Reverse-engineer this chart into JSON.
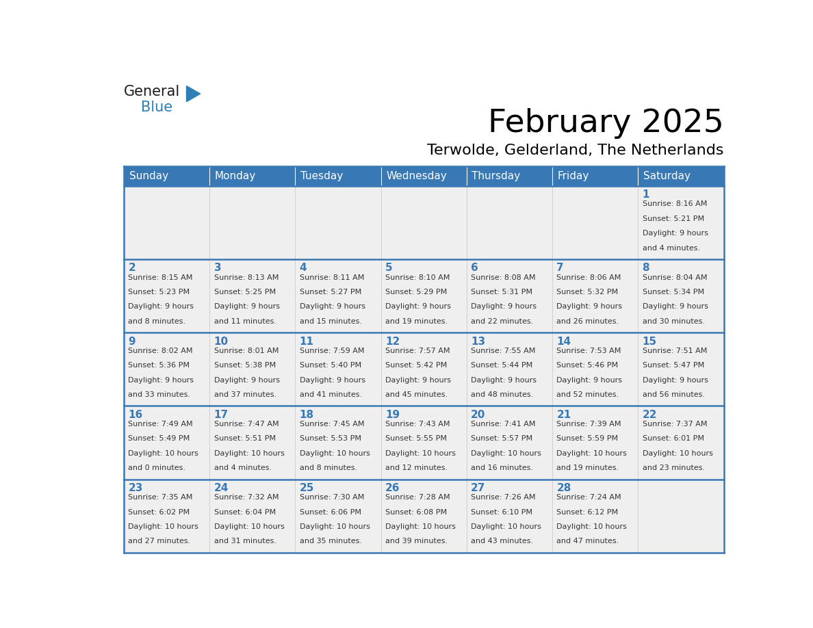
{
  "title": "February 2025",
  "subtitle": "Terwolde, Gelderland, The Netherlands",
  "header_bg": "#3878B4",
  "header_text": "#FFFFFF",
  "days_of_week": [
    "Sunday",
    "Monday",
    "Tuesday",
    "Wednesday",
    "Thursday",
    "Friday",
    "Saturday"
  ],
  "cell_bg": "#EFEFEF",
  "separator_color": "#3878B4",
  "day_number_color": "#3878B4",
  "info_text_color": "#333333",
  "calendar_data": [
    [
      {
        "day": null,
        "info": null
      },
      {
        "day": null,
        "info": null
      },
      {
        "day": null,
        "info": null
      },
      {
        "day": null,
        "info": null
      },
      {
        "day": null,
        "info": null
      },
      {
        "day": null,
        "info": null
      },
      {
        "day": 1,
        "info": "Sunrise: 8:16 AM\nSunset: 5:21 PM\nDaylight: 9 hours\nand 4 minutes."
      }
    ],
    [
      {
        "day": 2,
        "info": "Sunrise: 8:15 AM\nSunset: 5:23 PM\nDaylight: 9 hours\nand 8 minutes."
      },
      {
        "day": 3,
        "info": "Sunrise: 8:13 AM\nSunset: 5:25 PM\nDaylight: 9 hours\nand 11 minutes."
      },
      {
        "day": 4,
        "info": "Sunrise: 8:11 AM\nSunset: 5:27 PM\nDaylight: 9 hours\nand 15 minutes."
      },
      {
        "day": 5,
        "info": "Sunrise: 8:10 AM\nSunset: 5:29 PM\nDaylight: 9 hours\nand 19 minutes."
      },
      {
        "day": 6,
        "info": "Sunrise: 8:08 AM\nSunset: 5:31 PM\nDaylight: 9 hours\nand 22 minutes."
      },
      {
        "day": 7,
        "info": "Sunrise: 8:06 AM\nSunset: 5:32 PM\nDaylight: 9 hours\nand 26 minutes."
      },
      {
        "day": 8,
        "info": "Sunrise: 8:04 AM\nSunset: 5:34 PM\nDaylight: 9 hours\nand 30 minutes."
      }
    ],
    [
      {
        "day": 9,
        "info": "Sunrise: 8:02 AM\nSunset: 5:36 PM\nDaylight: 9 hours\nand 33 minutes."
      },
      {
        "day": 10,
        "info": "Sunrise: 8:01 AM\nSunset: 5:38 PM\nDaylight: 9 hours\nand 37 minutes."
      },
      {
        "day": 11,
        "info": "Sunrise: 7:59 AM\nSunset: 5:40 PM\nDaylight: 9 hours\nand 41 minutes."
      },
      {
        "day": 12,
        "info": "Sunrise: 7:57 AM\nSunset: 5:42 PM\nDaylight: 9 hours\nand 45 minutes."
      },
      {
        "day": 13,
        "info": "Sunrise: 7:55 AM\nSunset: 5:44 PM\nDaylight: 9 hours\nand 48 minutes."
      },
      {
        "day": 14,
        "info": "Sunrise: 7:53 AM\nSunset: 5:46 PM\nDaylight: 9 hours\nand 52 minutes."
      },
      {
        "day": 15,
        "info": "Sunrise: 7:51 AM\nSunset: 5:47 PM\nDaylight: 9 hours\nand 56 minutes."
      }
    ],
    [
      {
        "day": 16,
        "info": "Sunrise: 7:49 AM\nSunset: 5:49 PM\nDaylight: 10 hours\nand 0 minutes."
      },
      {
        "day": 17,
        "info": "Sunrise: 7:47 AM\nSunset: 5:51 PM\nDaylight: 10 hours\nand 4 minutes."
      },
      {
        "day": 18,
        "info": "Sunrise: 7:45 AM\nSunset: 5:53 PM\nDaylight: 10 hours\nand 8 minutes."
      },
      {
        "day": 19,
        "info": "Sunrise: 7:43 AM\nSunset: 5:55 PM\nDaylight: 10 hours\nand 12 minutes."
      },
      {
        "day": 20,
        "info": "Sunrise: 7:41 AM\nSunset: 5:57 PM\nDaylight: 10 hours\nand 16 minutes."
      },
      {
        "day": 21,
        "info": "Sunrise: 7:39 AM\nSunset: 5:59 PM\nDaylight: 10 hours\nand 19 minutes."
      },
      {
        "day": 22,
        "info": "Sunrise: 7:37 AM\nSunset: 6:01 PM\nDaylight: 10 hours\nand 23 minutes."
      }
    ],
    [
      {
        "day": 23,
        "info": "Sunrise: 7:35 AM\nSunset: 6:02 PM\nDaylight: 10 hours\nand 27 minutes."
      },
      {
        "day": 24,
        "info": "Sunrise: 7:32 AM\nSunset: 6:04 PM\nDaylight: 10 hours\nand 31 minutes."
      },
      {
        "day": 25,
        "info": "Sunrise: 7:30 AM\nSunset: 6:06 PM\nDaylight: 10 hours\nand 35 minutes."
      },
      {
        "day": 26,
        "info": "Sunrise: 7:28 AM\nSunset: 6:08 PM\nDaylight: 10 hours\nand 39 minutes."
      },
      {
        "day": 27,
        "info": "Sunrise: 7:26 AM\nSunset: 6:10 PM\nDaylight: 10 hours\nand 43 minutes."
      },
      {
        "day": 28,
        "info": "Sunrise: 7:24 AM\nSunset: 6:12 PM\nDaylight: 10 hours\nand 47 minutes."
      },
      {
        "day": null,
        "info": null
      }
    ]
  ],
  "logo_text_color": "#1a1a1a",
  "logo_blue_color": "#2E7EB8",
  "fig_width": 11.88,
  "fig_height": 9.18,
  "dpi": 100
}
